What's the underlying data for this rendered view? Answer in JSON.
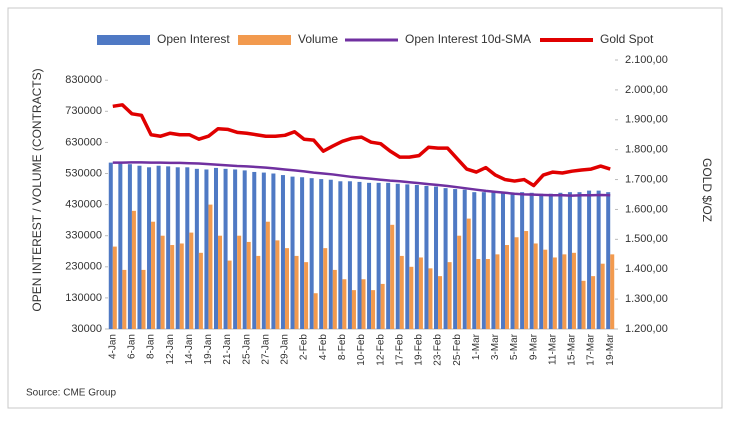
{
  "chart_data": {
    "type": "combo",
    "y_label": "OPEN INTEREST / VOLUME (CONTRACTS)",
    "y2_label": "GOLD $/OZ",
    "source": "Source: CME Group",
    "categories": [
      "4-Jan",
      null,
      "6-Jan",
      null,
      "8-Jan",
      null,
      "12-Jan",
      null,
      "14-Jan",
      null,
      "19-Jan",
      null,
      "21-Jan",
      null,
      "25-Jan",
      null,
      "27-Jan",
      null,
      "29-Jan",
      null,
      "2-Feb",
      null,
      "4-Feb",
      null,
      "8-Feb",
      null,
      "10-Feb",
      null,
      "12-Feb",
      null,
      "17-Feb",
      null,
      "19-Feb",
      null,
      "23-Feb",
      null,
      "25-Feb",
      null,
      "1-Mar",
      null,
      "3-Mar",
      null,
      "5-Mar",
      null,
      "9-Mar",
      null,
      "11-Mar",
      null,
      "15-Mar",
      null,
      "17-Mar",
      null,
      "19-Mar"
    ],
    "ylim": [
      30000,
      895000
    ],
    "yticks": [
      30000,
      130000,
      230000,
      330000,
      430000,
      530000,
      630000,
      730000,
      830000
    ],
    "y2lim": [
      1200,
      2100
    ],
    "y2ticks": [
      {
        "value": 1200,
        "label": "1.200,00"
      },
      {
        "value": 1300,
        "label": "1.300,00"
      },
      {
        "value": 1400,
        "label": "1.400,00"
      },
      {
        "value": 1500,
        "label": "1.500,00"
      },
      {
        "value": 1600,
        "label": "1.600,00"
      },
      {
        "value": 1700,
        "label": "1.700,00"
      },
      {
        "value": 1800,
        "label": "1.800,00"
      },
      {
        "value": 1900,
        "label": "1.900,00"
      },
      {
        "value": 2000,
        "label": "2.000,00"
      },
      {
        "value": 2100,
        "label": "2.100,00"
      }
    ],
    "series": [
      {
        "name": "Open Interest",
        "kind": "bar",
        "color": "#4f79c4",
        "values": [
          565000,
          562000,
          560000,
          555000,
          550000,
          555000,
          553000,
          550000,
          550000,
          545000,
          543000,
          548000,
          545000,
          543000,
          540000,
          535000,
          533000,
          530000,
          525000,
          520000,
          518000,
          515000,
          512000,
          510000,
          505000,
          505000,
          503000,
          500000,
          500000,
          500000,
          497000,
          495000,
          493000,
          490000,
          488000,
          483000,
          480000,
          478000,
          470000,
          470000,
          470000,
          468000,
          468000,
          470000,
          468000,
          465000,
          465000,
          468000,
          470000,
          470000,
          475000,
          475000,
          470000
        ]
      },
      {
        "name": "Volume",
        "kind": "bar",
        "color": "#f29a4e",
        "values": [
          295000,
          220000,
          410000,
          220000,
          375000,
          330000,
          300000,
          305000,
          340000,
          275000,
          430000,
          330000,
          250000,
          330000,
          310000,
          265000,
          375000,
          315000,
          290000,
          265000,
          245000,
          145000,
          290000,
          220000,
          190000,
          155000,
          190000,
          155000,
          175000,
          365000,
          265000,
          230000,
          260000,
          225000,
          200000,
          245000,
          330000,
          385000,
          255000,
          255000,
          270000,
          300000,
          325000,
          345000,
          305000,
          285000,
          260000,
          270000,
          275000,
          185000,
          200000,
          240000,
          270000
        ]
      },
      {
        "name": "Open Interest 10d-SMA",
        "kind": "line",
        "color": "#7030a0",
        "values": [
          565000,
          565000,
          566000,
          566000,
          565000,
          565000,
          564000,
          564000,
          563000,
          562000,
          560000,
          558000,
          556000,
          554000,
          553000,
          551000,
          549000,
          546000,
          543000,
          540000,
          537000,
          533000,
          530000,
          527000,
          523000,
          519000,
          516000,
          513000,
          510000,
          507000,
          505000,
          502000,
          499000,
          496000,
          493000,
          490000,
          486000,
          482000,
          478000,
          474000,
          471000,
          468000,
          465000,
          463000,
          462000,
          461000,
          460000,
          460000,
          459000,
          460000,
          460000,
          461000,
          460000
        ]
      },
      {
        "name": "Gold Spot",
        "kind": "line",
        "axis": "y2",
        "color": "#e00000",
        "values": [
          1945,
          1950,
          1920,
          1915,
          1850,
          1845,
          1855,
          1850,
          1850,
          1835,
          1845,
          1870,
          1868,
          1858,
          1855,
          1850,
          1845,
          1845,
          1848,
          1860,
          1835,
          1832,
          1795,
          1812,
          1828,
          1838,
          1842,
          1825,
          1820,
          1795,
          1775,
          1775,
          1780,
          1808,
          1805,
          1805,
          1770,
          1735,
          1725,
          1740,
          1715,
          1700,
          1695,
          1700,
          1680,
          1715,
          1725,
          1722,
          1728,
          1732,
          1735,
          1745,
          1735
        ]
      }
    ]
  }
}
